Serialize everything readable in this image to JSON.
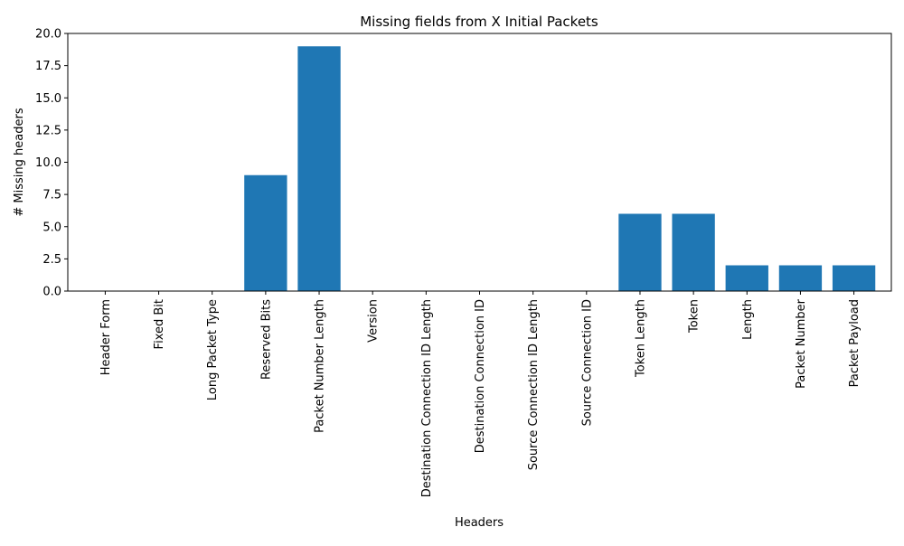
{
  "chart_data": {
    "type": "bar",
    "title": "Missing fields from X Initial Packets",
    "xlabel": "Headers",
    "ylabel": "# Missing headers",
    "categories": [
      "Header Form",
      "Fixed Bit",
      "Long Packet Type",
      "Reserved Bits",
      "Packet Number Length",
      "Version",
      "Destination Connection ID Length",
      "Destination Connection ID",
      "Source Connection ID Length",
      "Source Connection ID",
      "Token Length",
      "Token",
      "Length",
      "Packet Number",
      "Packet Payload"
    ],
    "values": [
      0,
      0,
      0,
      9,
      19,
      0,
      0,
      0,
      0,
      0,
      6,
      6,
      2,
      2,
      2
    ],
    "ylim": [
      0,
      20
    ],
    "yticks": [
      "0.0",
      "2.5",
      "5.0",
      "7.5",
      "10.0",
      "12.5",
      "15.0",
      "17.5",
      "20.0"
    ],
    "grid": false,
    "bar_color": "#1f77b4"
  }
}
